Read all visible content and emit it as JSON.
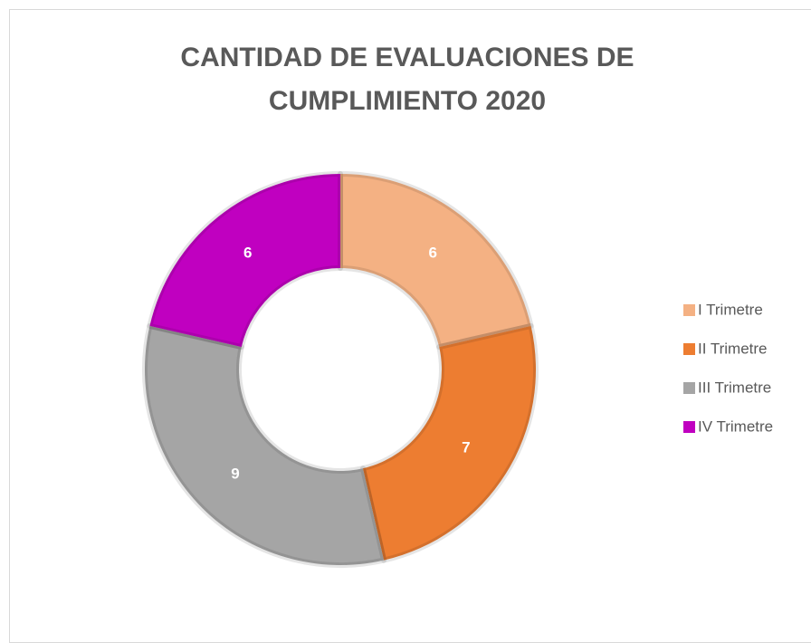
{
  "chart_data": {
    "type": "donut",
    "title": "CANTIDAD DE EVALUACIONES DE CUMPLIMIENTO 2020",
    "categories": [
      "I Trimetre",
      "II Trimetre",
      "III Trimetre",
      "IV Trimetre"
    ],
    "values": [
      6,
      7,
      9,
      6
    ],
    "colors": [
      "#f4b183",
      "#ed7d31",
      "#a5a5a5",
      "#c000c0"
    ],
    "legend": "right"
  }
}
